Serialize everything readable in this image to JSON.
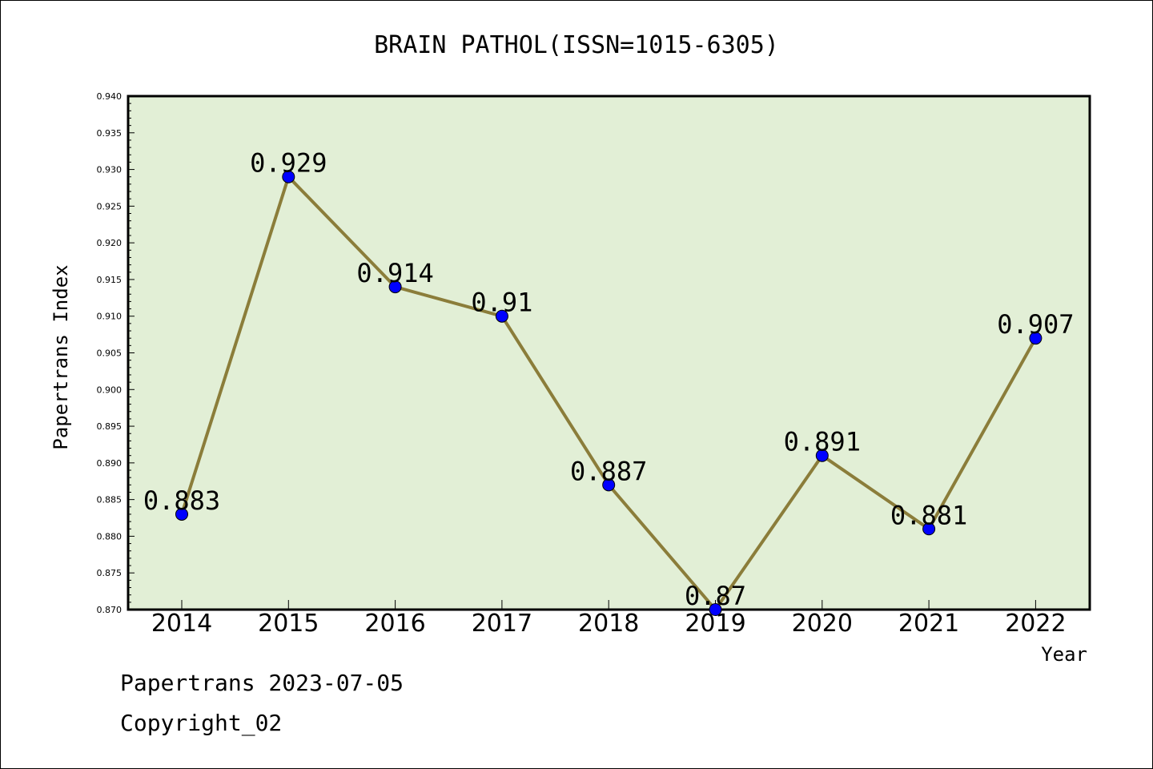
{
  "chart_data": {
    "type": "line",
    "title": "BRAIN PATHOL(ISSN=1015-6305)",
    "xlabel": "Year",
    "ylabel": "Papertrans Index",
    "categories": [
      "2014",
      "2015",
      "2016",
      "2017",
      "2018",
      "2019",
      "2020",
      "2021",
      "2022"
    ],
    "series": [
      {
        "values": [
          0.883,
          0.929,
          0.914,
          0.91,
          0.887,
          0.87,
          0.891,
          0.881,
          0.907
        ],
        "data_labels": [
          "0.883",
          "0.929",
          "0.914",
          "0.91",
          "0.887",
          "0.87",
          "0.891",
          "0.881",
          "0.907"
        ],
        "line_color": "#8b7d3a",
        "marker_color": "#0000ff"
      }
    ],
    "ylim": [
      0.87,
      0.94
    ],
    "y_ticks": [
      "0.870",
      "0.875",
      "0.880",
      "0.885",
      "0.890",
      "0.895",
      "0.900",
      "0.905",
      "0.910",
      "0.915",
      "0.920",
      "0.925",
      "0.930",
      "0.935",
      "0.940"
    ],
    "grid": false,
    "plot_background": "#e2efd6"
  },
  "footer": {
    "line1": "Papertrans 2023-07-05",
    "line2": "Copyright_02"
  }
}
